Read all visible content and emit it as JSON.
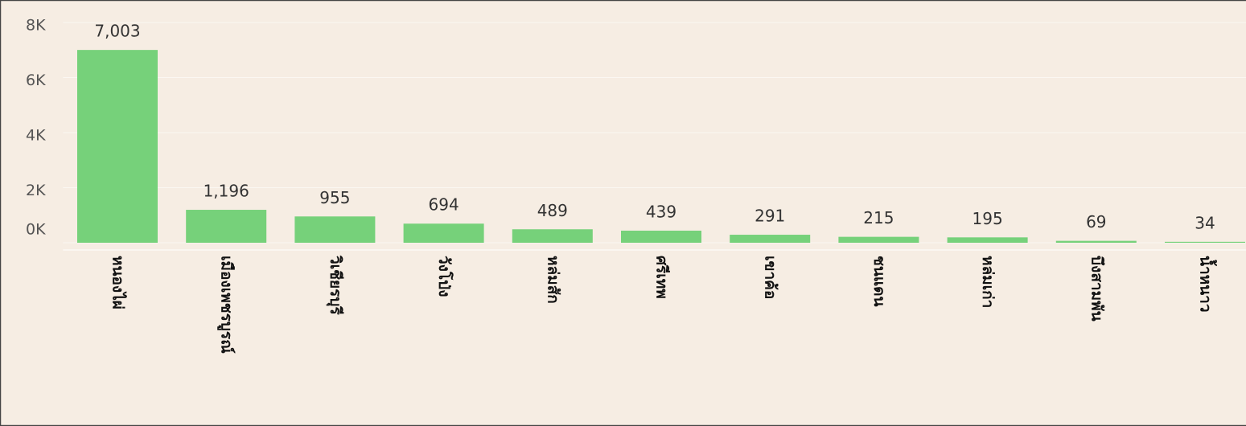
{
  "chart_data": {
    "type": "bar",
    "categories": [
      "หนองไผ่",
      "เมืองเพชรบูรณ์",
      "วิเชียรบุรี",
      "วังโป่ง",
      "หล่มสัก",
      "ศรีเทพ",
      "เขาค้อ",
      "ชนแดน",
      "หล่มเก่า",
      "บึงสามพัน",
      "น้ำหนาว"
    ],
    "values": [
      7003,
      1196,
      955,
      694,
      489,
      439,
      291,
      215,
      195,
      69,
      34
    ],
    "value_labels": [
      "7,003",
      "1,196",
      "955",
      "694",
      "489",
      "439",
      "291",
      "215",
      "195",
      "69",
      "34"
    ],
    "color": "#76d17a",
    "ylim": [
      0,
      8000
    ],
    "yticks": [
      {
        "value": 0,
        "label": "0K"
      },
      {
        "value": 2000,
        "label": "2K"
      },
      {
        "value": 4000,
        "label": "4K"
      },
      {
        "value": 6000,
        "label": "6K"
      },
      {
        "value": 8000,
        "label": "8K"
      }
    ],
    "grid": true
  }
}
